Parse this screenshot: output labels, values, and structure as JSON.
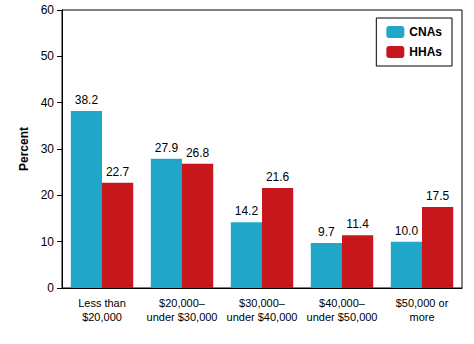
{
  "chart_data": {
    "type": "bar",
    "y_label": "Percent",
    "categories": [
      "Less than\n$20,000",
      "$20,000–\nunder $30,000",
      "$30,000–\nunder $40,000",
      "$40,000–\nunder $50,000",
      "$50,000 or\nmore"
    ],
    "series": [
      {
        "name": "CNAs",
        "color": "#1fa6c9",
        "values": [
          38.2,
          27.9,
          14.2,
          9.7,
          10.0
        ],
        "value_labels": [
          "38.2",
          "27.9",
          "14.2",
          "9.7",
          "10.0"
        ]
      },
      {
        "name": "HHAs",
        "color": "#c8161d",
        "values": [
          22.7,
          26.8,
          21.6,
          11.4,
          17.5
        ]
      }
    ],
    "ylim": [
      0,
      60
    ],
    "yticks": [
      0,
      10,
      20,
      30,
      40,
      50,
      60
    ],
    "grid": false,
    "legend": "upper right",
    "data_labels": true
  }
}
